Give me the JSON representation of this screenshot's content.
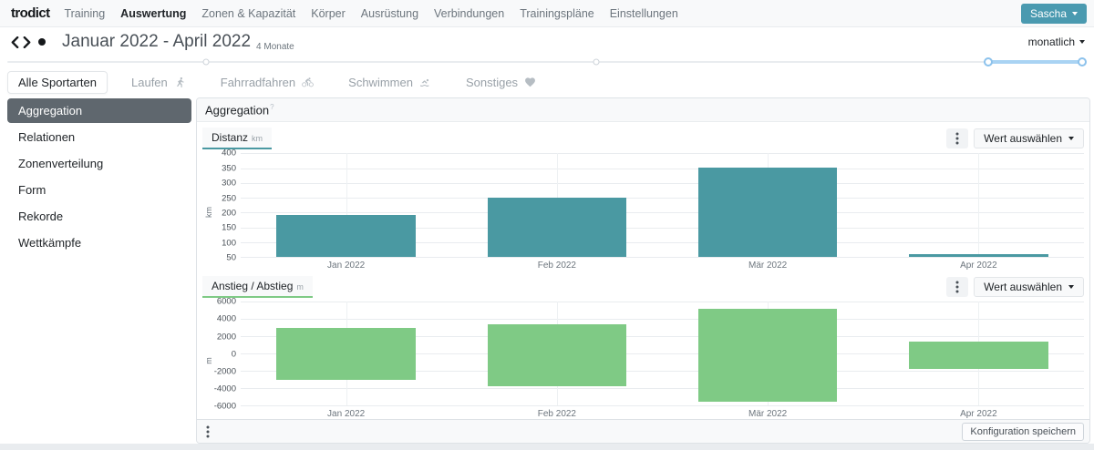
{
  "navbar": {
    "logo": "trodict",
    "items": [
      {
        "label": "Training",
        "active": false
      },
      {
        "label": "Auswertung",
        "active": true
      },
      {
        "label": "Zonen & Kapazität",
        "active": false
      },
      {
        "label": "Körper",
        "active": false
      },
      {
        "label": "Ausrüstung",
        "active": false
      },
      {
        "label": "Verbindungen",
        "active": false
      },
      {
        "label": "Trainingspläne",
        "active": false
      },
      {
        "label": "Einstellungen",
        "active": false
      }
    ],
    "user_menu": "Sascha"
  },
  "period": {
    "title": "Januar 2022 - April 2022",
    "duration": "4 Monate",
    "granularity": "monatlich"
  },
  "timeline": {
    "ticks_pct": [
      18.4,
      54.6
    ],
    "range_pct": [
      90.9,
      99.6
    ]
  },
  "sport_tabs": [
    {
      "label": "Alle Sportarten",
      "icon": null,
      "active": true
    },
    {
      "label": "Laufen",
      "icon": "runner-icon",
      "active": false
    },
    {
      "label": "Fahrradfahren",
      "icon": "cyclist-icon",
      "active": false
    },
    {
      "label": "Schwimmen",
      "icon": "swimmer-icon",
      "active": false
    },
    {
      "label": "Sonstiges",
      "icon": "heart-icon",
      "active": false
    }
  ],
  "sidebar": [
    {
      "label": "Aggregation",
      "active": true
    },
    {
      "label": "Relationen",
      "active": false
    },
    {
      "label": "Zonenverteilung",
      "active": false
    },
    {
      "label": "Form",
      "active": false
    },
    {
      "label": "Rekorde",
      "active": false
    },
    {
      "label": "Wettkämpfe",
      "active": false
    }
  ],
  "main": {
    "title": "Aggregation",
    "title_hint": "?",
    "value_select_label": "Wert auswählen",
    "save_button": "Konfiguration speichern"
  },
  "chart_data": [
    {
      "type": "bar",
      "title": "Distanz",
      "unit": "km",
      "ylabel": "km",
      "categories": [
        "Jan 2022",
        "Feb 2022",
        "Mär 2022",
        "Apr 2022"
      ],
      "values": [
        192,
        252,
        353,
        60
      ],
      "ylim": [
        50,
        400
      ],
      "yticks": [
        400,
        350,
        300,
        250,
        200,
        150,
        100,
        50
      ],
      "bar_color": "#4a99a2",
      "accent": "#4a99a2",
      "grid": true,
      "legend": false
    },
    {
      "type": "bar",
      "title": "Anstieg / Abstieg",
      "unit": "m",
      "ylabel": "m",
      "categories": [
        "Jan 2022",
        "Feb 2022",
        "Mär 2022",
        "Apr 2022"
      ],
      "series": [
        {
          "name": "Anstieg",
          "values": [
            3000,
            3450,
            5150,
            1450
          ]
        },
        {
          "name": "Abstieg",
          "values": [
            -3050,
            -3750,
            -5550,
            -1750
          ]
        }
      ],
      "ylim": [
        -6000,
        6000
      ],
      "yticks": [
        6000,
        4000,
        2000,
        0,
        -2000,
        -4000,
        -6000
      ],
      "bar_color": "#7fca85",
      "accent": "#7fca85",
      "grid": true,
      "legend": false
    }
  ]
}
